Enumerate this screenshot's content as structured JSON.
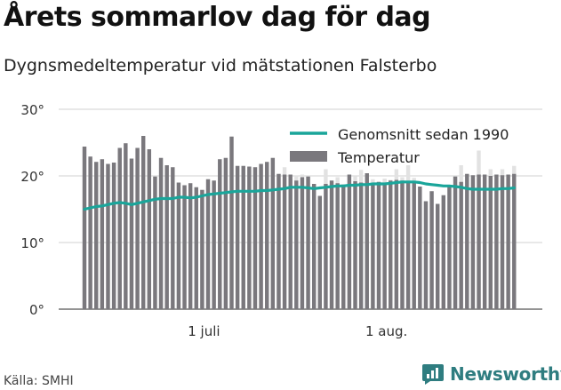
{
  "header": {
    "title": "Årets sommarlov dag för dag",
    "subtitle": "Dygnsmedeltemperatur vid mätstationen Falsterbo"
  },
  "footer": {
    "source": "Källa: SMHI",
    "brand": "Newsworthy"
  },
  "colors": {
    "bar": "#7a787d",
    "bar_light": "#e2e2e2",
    "line": "#1aa59a",
    "grid": "#d0d0d0",
    "brand": "#2f7d80"
  },
  "chart_data": {
    "type": "bar",
    "title": "Årets sommarlov dag för dag",
    "subtitle": "Dygnsmedeltemperatur vid mätstationen Falsterbo",
    "ylim": [
      0,
      30
    ],
    "y_ticks": [
      "0°",
      "10°",
      "20°",
      "30°"
    ],
    "y_tick_values": [
      0,
      10,
      20,
      30
    ],
    "x_ticks": [
      {
        "label": "1 juli",
        "index": 20
      },
      {
        "label": "1 aug.",
        "index": 51
      }
    ],
    "legend_position": "top-right",
    "grid": true,
    "series": [
      {
        "name": "Temperatur",
        "kind": "bar",
        "values": [
          24.4,
          22.9,
          22.1,
          22.5,
          21.8,
          22.0,
          24.2,
          24.9,
          22.6,
          24.2,
          26.0,
          24.0,
          19.9,
          22.7,
          21.6,
          21.3,
          19.0,
          18.6,
          18.9,
          18.3,
          17.9,
          19.5,
          19.3,
          22.5,
          22.7,
          25.9,
          21.5,
          21.5,
          21.4,
          21.3,
          21.8,
          22.1,
          22.7,
          20.3,
          20.2,
          20.2,
          19.3,
          19.8,
          19.9,
          18.8,
          17.0,
          18.8,
          19.3,
          18.9,
          18.7,
          20.2,
          19.2,
          19.0,
          20.4,
          18.9,
          19.1,
          18.9,
          19.3,
          19.4,
          19.3,
          19.2,
          19.1,
          18.4,
          16.2,
          17.7,
          15.8,
          17.1,
          18.6,
          19.9,
          19.1,
          20.3,
          20.1,
          20.2,
          20.2,
          20.0,
          20.2,
          20.1,
          20.2,
          20.3
        ]
      },
      {
        "name": "Genomsnitt sedan 1990",
        "kind": "line",
        "values": [
          15.0,
          15.2,
          15.4,
          15.5,
          15.7,
          15.9,
          16.0,
          15.9,
          15.7,
          15.9,
          16.1,
          16.3,
          16.5,
          16.6,
          16.6,
          16.6,
          16.8,
          16.8,
          16.7,
          16.8,
          17.0,
          17.2,
          17.3,
          17.4,
          17.5,
          17.6,
          17.7,
          17.7,
          17.7,
          17.7,
          17.8,
          17.8,
          17.9,
          18.0,
          18.1,
          18.3,
          18.3,
          18.3,
          18.2,
          18.1,
          18.2,
          18.3,
          18.4,
          18.5,
          18.5,
          18.6,
          18.6,
          18.7,
          18.7,
          18.8,
          18.8,
          18.8,
          18.9,
          19.0,
          19.1,
          19.1,
          19.1,
          19.0,
          18.8,
          18.7,
          18.6,
          18.5,
          18.5,
          18.4,
          18.3,
          18.1,
          18.0,
          18.0,
          18.0,
          18.0,
          18.0,
          18.1,
          18.1,
          18.2
        ]
      }
    ],
    "climate_normal_max": [
      24.4,
      22.9,
      22.1,
      22.5,
      21.8,
      22.0,
      24.2,
      24.9,
      22.6,
      24.2,
      26.0,
      24.0,
      19.9,
      22.7,
      21.6,
      21.3,
      19.0,
      18.6,
      18.9,
      18.3,
      17.9,
      19.5,
      19.3,
      22.5,
      22.7,
      25.9,
      21.5,
      21.5,
      21.4,
      21.3,
      21.8,
      22.1,
      22.7,
      20.3,
      21.3,
      20.2,
      20.1,
      20.2,
      19.9,
      18.8,
      17.0,
      21.0,
      19.3,
      19.8,
      18.7,
      20.2,
      19.9,
      20.9,
      20.4,
      19.5,
      19.1,
      19.6,
      19.4,
      21.0,
      19.8,
      21.6,
      19.7,
      18.4,
      16.2,
      17.7,
      15.8,
      17.1,
      18.6,
      19.9,
      21.6,
      20.3,
      20.1,
      23.8,
      20.2,
      21.0,
      20.2,
      21.0,
      20.2,
      21.5
    ]
  }
}
